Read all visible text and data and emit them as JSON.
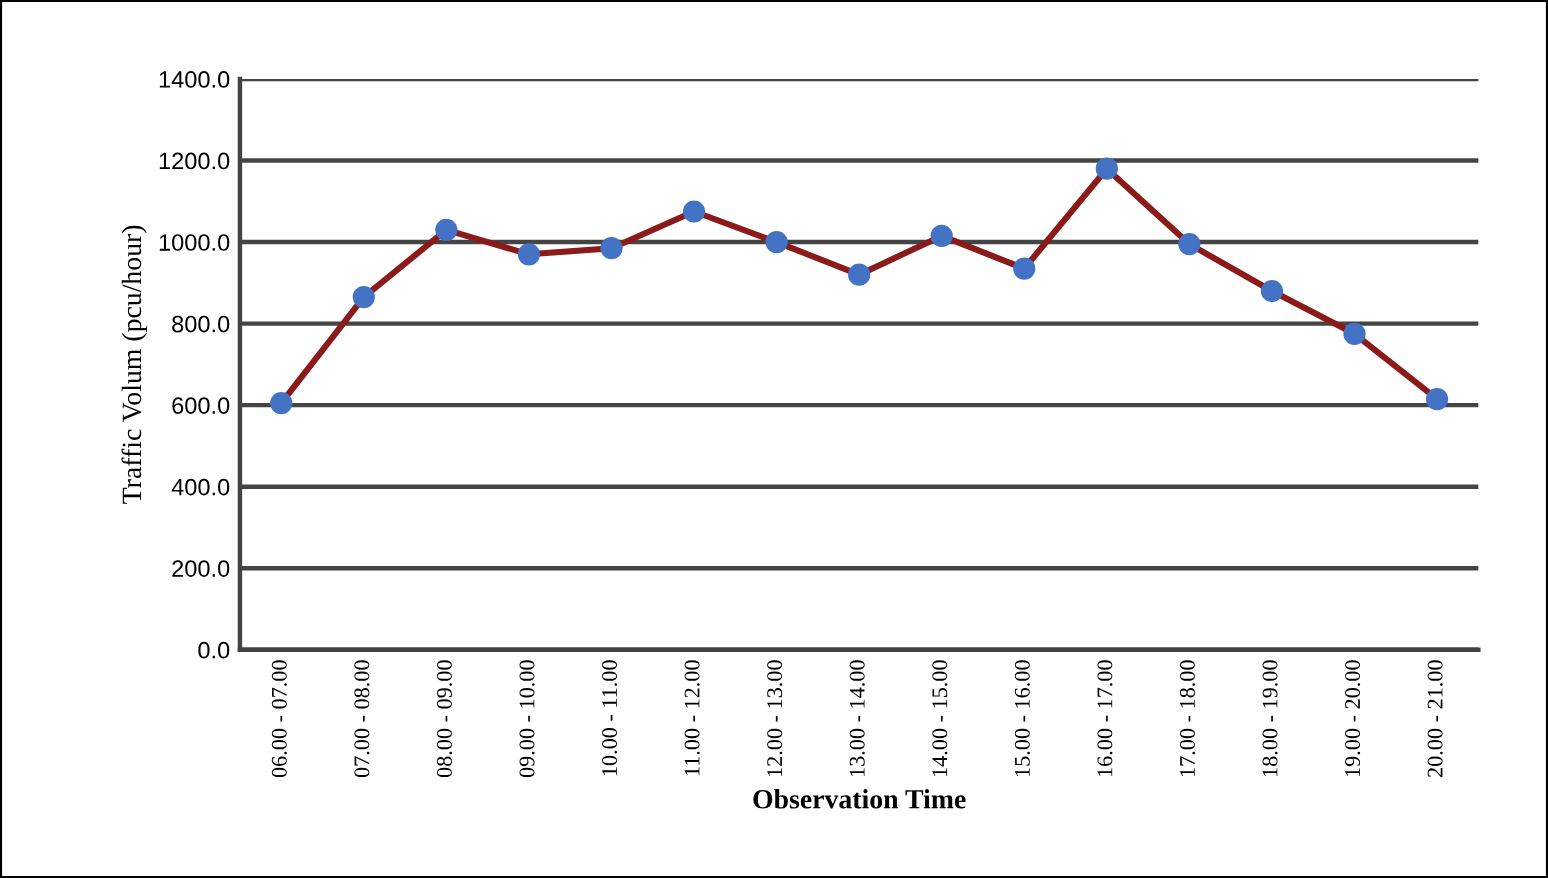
{
  "chart_data": {
    "type": "line",
    "xlabel": "Observation Time",
    "ylabel": "Traffic Volum (pcu/hour)",
    "categories": [
      "06.00 - 07.00",
      "07.00 - 08.00",
      "08.00 - 09.00",
      "09.00 - 10.00",
      "10.00 - 11.00",
      "11.00 - 12.00",
      "12.00 - 13.00",
      "13.00 - 14.00",
      "14.00 - 15.00",
      "15.00 - 16.00",
      "16.00 - 17.00",
      "17.00 - 18.00",
      "18.00 - 19.00",
      "19.00 - 20.00",
      "20.00 - 21.00"
    ],
    "series": [
      {
        "color": "#8b1a1a",
        "colors": [
          "#4472c4",
          "#4472c4",
          "#4472c4",
          "#4472c4",
          "#4472c4",
          "#4472c4",
          "#4472c4",
          "#4472c4",
          "#4472c4",
          "#4472c4",
          "#4472c4",
          "#4472c4",
          "#4472c4",
          "#4472c4",
          "#4472c4"
        ],
        "values": [
          605,
          865,
          1030,
          970,
          985,
          1075,
          1000,
          920,
          1015,
          935,
          1180,
          995,
          880,
          775,
          615
        ]
      }
    ],
    "ylim": [
      0,
      1400
    ],
    "yticks": [
      {
        "value": 0,
        "label": "0.0"
      },
      {
        "value": 200,
        "label": "200.0"
      },
      {
        "value": 400,
        "label": "400.0"
      },
      {
        "value": 600,
        "label": "600.0"
      },
      {
        "value": 800,
        "label": "800.0"
      },
      {
        "value": 1000,
        "label": "1000.0"
      },
      {
        "value": 1200,
        "label": "1200.0"
      },
      {
        "value": 1400,
        "label": "1400.0"
      }
    ],
    "grid": "y",
    "marker": "circle",
    "line_style": "solid"
  }
}
